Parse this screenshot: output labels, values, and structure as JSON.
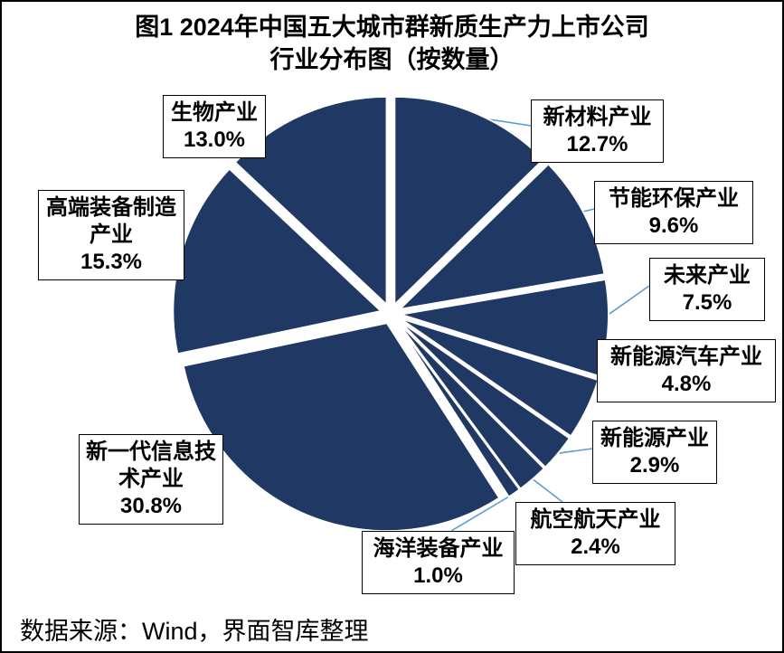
{
  "title": {
    "line1": "图1 2024年中国五大城市群新质生产力上市公司",
    "line2": "行业分布图（按数量）"
  },
  "source": "数据来源：Wind，界面智库整理",
  "colors": {
    "pie_fill": "#1F3864",
    "leader_line": "#5B9BD5",
    "box_border": "#000000",
    "background": "#FFFFFF"
  },
  "chart_data": {
    "type": "pie",
    "title": "图1 2024年中国五大城市群新质生产力上市公司行业分布图（按数量）",
    "start_angle_deg": 0,
    "direction": "clockwise",
    "exploded": true,
    "legend_position": "none",
    "slices": [
      {
        "label": "新材料产业",
        "value": 12.7,
        "pct_label": "12.7%"
      },
      {
        "label": "节能环保产业",
        "value": 9.6,
        "pct_label": "9.6%"
      },
      {
        "label": "未来产业",
        "value": 7.5,
        "pct_label": "7.5%"
      },
      {
        "label": "新能源汽车产业",
        "value": 4.8,
        "pct_label": "4.8%"
      },
      {
        "label": "新能源产业",
        "value": 2.9,
        "pct_label": "2.9%"
      },
      {
        "label": "航空航天产业",
        "value": 2.4,
        "pct_label": "2.4%"
      },
      {
        "label": "海洋装备产业",
        "value": 1.0,
        "pct_label": "1.0%"
      },
      {
        "label": "新一代信息技术产业",
        "value": 30.8,
        "pct_label": "30.8%"
      },
      {
        "label": "高端装备制造产业",
        "value": 15.3,
        "pct_label": "15.3%"
      },
      {
        "label": "生物产业",
        "value": 13.0,
        "pct_label": "13.0%"
      }
    ]
  }
}
